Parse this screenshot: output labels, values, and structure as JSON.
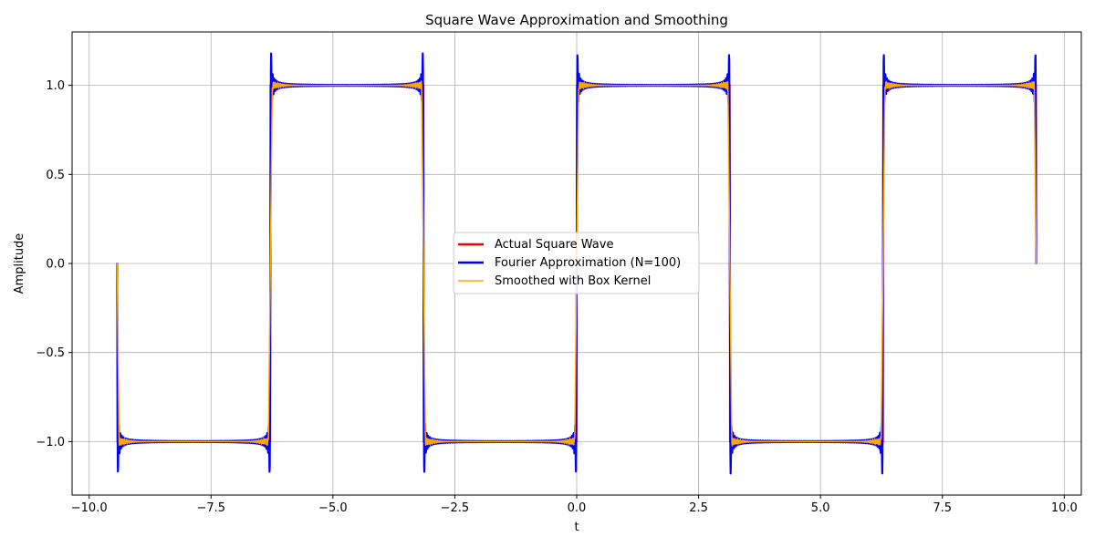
{
  "chart_data": {
    "type": "line",
    "title": "Square Wave Approximation and Smoothing",
    "xlabel": "t",
    "ylabel": "Amplitude",
    "xlim": [
      -10.35,
      10.35
    ],
    "ylim": [
      -1.3,
      1.3
    ],
    "xticks": [
      -10.0,
      -7.5,
      -5.0,
      -2.5,
      0.0,
      2.5,
      5.0,
      7.5,
      10.0
    ],
    "xtick_labels": [
      "−10.0",
      "−7.5",
      "−5.0",
      "−2.5",
      "0.0",
      "2.5",
      "5.0",
      "7.5",
      "10.0"
    ],
    "yticks": [
      -1.0,
      -0.5,
      0.0,
      0.5,
      1.0
    ],
    "ytick_labels": [
      "−1.0",
      "−0.5",
      "0.0",
      "0.5",
      "1.0"
    ],
    "grid": true,
    "legend_position": "center",
    "domain": [
      -9.4248,
      9.4248
    ],
    "discontinuities": [
      -9.4248,
      -6.2832,
      -3.1416,
      0.0,
      3.1416,
      6.2832,
      9.4248
    ],
    "series": [
      {
        "name": "Actual Square Wave",
        "color": "#ff0000",
        "function": "sign(sin(t))",
        "value_at_jump": 0.0
      },
      {
        "name": "Fourier Approximation (N=100)",
        "color": "#0000ff",
        "function": "(4/π)·Σ sin((2k−1)t)/(2k−1), k=1..100",
        "overshoot_peak": 1.18
      },
      {
        "name": "Smoothed with Box Kernel",
        "color": "#ffa500",
        "function": "box-smoothed square wave",
        "value_range": [
          -1.03,
          1.03
        ]
      }
    ]
  }
}
